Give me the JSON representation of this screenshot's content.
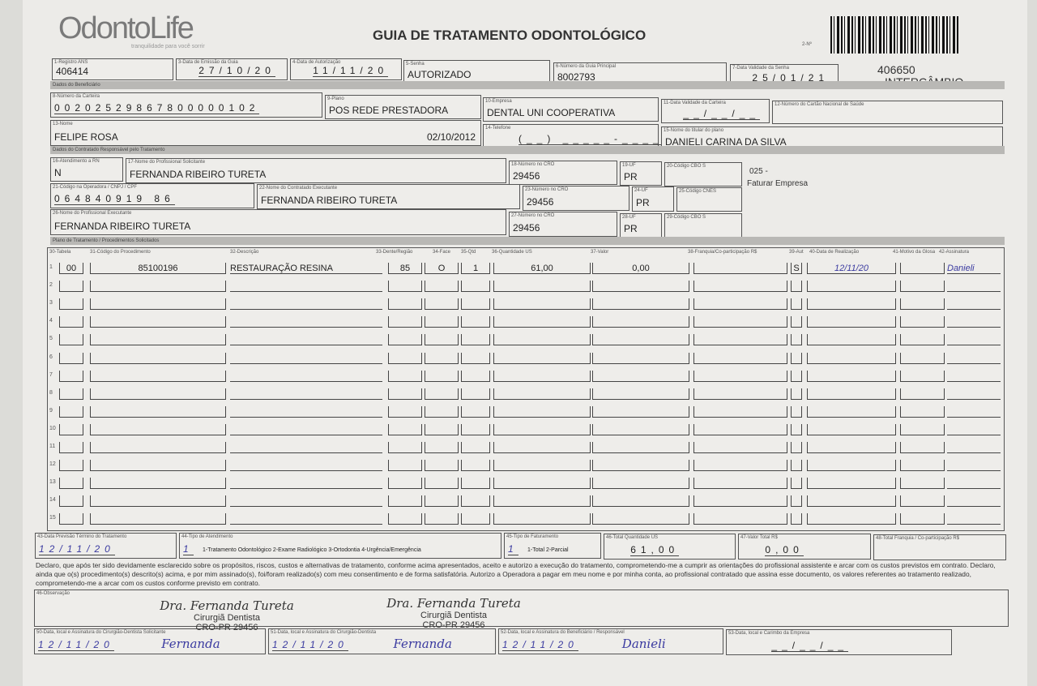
{
  "header": {
    "logo": "OdontoLife",
    "logo_tagline": "tranquilidade para você sorrir",
    "title": "GUIA DE TRATAMENTO ODONTOLÓGICO",
    "guide_no_label": "2-Nº",
    "code": "406650",
    "code_label": "INTERCÂMBIO"
  },
  "sections": {
    "beneficiary": "Dados do Beneficiário",
    "contracted": "Dados do Contratado Responsável pelo Tratamento",
    "plan": "Plano de Tratamento / Procedimentos Solicitados"
  },
  "fields": {
    "f1": {
      "label": "1-Registro ANS",
      "value": "406414"
    },
    "f3": {
      "label": "3-Data de Emissão da Guia",
      "value": "27/10/20"
    },
    "f4": {
      "label": "4-Data de Autorização",
      "value": "11/11/20"
    },
    "f5": {
      "label": "5-Senha",
      "value": "AUTORIZADO"
    },
    "f6": {
      "label": "6-Número da Guia Principal",
      "value": "8002793"
    },
    "f7": {
      "label": "7-Data Validade da Senha",
      "value": "25/01/21"
    },
    "f8": {
      "label": "8-Número da Carteira",
      "value": "00202529867800000102"
    },
    "f9": {
      "label": "9-Plano",
      "value": "POS REDE PRESTADORA"
    },
    "f10": {
      "label": "10-Empresa",
      "value": "DENTAL UNI  COOPERATIVA"
    },
    "f11": {
      "label": "11-Data Validade da Carteira",
      "value": "__/__/__"
    },
    "f12": {
      "label": "12-Número do Cartão Nacional de Saúde",
      "value": ""
    },
    "f13": {
      "label": "13-Nome",
      "value": "FELIPE ROSA",
      "date": "02/10/2012"
    },
    "f14": {
      "label": "14-Telefone",
      "value": "(__) _____-_____"
    },
    "f15": {
      "label": "15-Nome do titular do plano",
      "value": "DANIELI CARINA DA SILVA"
    },
    "f16": {
      "label": "16-Atendimento a RN",
      "value": "N"
    },
    "f17": {
      "label": "17-Nome do Profissional Solicitante",
      "value": "FERNANDA RIBEIRO TURETA"
    },
    "f18": {
      "label": "18-Número no CRO",
      "value": "29456"
    },
    "f19": {
      "label": "19-UF",
      "value": "PR"
    },
    "f20": {
      "label": "20-Código CBO S",
      "value": ""
    },
    "f21": {
      "label": "21-Código na Operadora / CNPJ / CPF",
      "value": "064840919 86"
    },
    "f22": {
      "label": "22-Nome do Contratado Executante",
      "value": "FERNANDA RIBEIRO TURETA"
    },
    "f23": {
      "label": "23-Número no CRO",
      "value": "29456"
    },
    "f24": {
      "label": "24-UF",
      "value": "PR"
    },
    "f25": {
      "label": "25-Código CNES",
      "value": ""
    },
    "f26": {
      "label": "26-Nome do Profissional Executante",
      "value": "FERNANDA RIBEIRO TURETA"
    },
    "f27": {
      "label": "27-Número no CRO",
      "value": "29456"
    },
    "f28": {
      "label": "28-UF",
      "value": "PR"
    },
    "f29": {
      "label": "29-Código CBO S",
      "value": ""
    }
  },
  "side_note": {
    "code": "025 -",
    "text": "Faturar Empresa"
  },
  "table": {
    "headers": [
      "30-Tabela",
      "31-Código do Procedimento",
      "32-Descrição",
      "33-Dente/Região",
      "34-Face",
      "35-Qtd",
      "36-Quantidade US",
      "37-Valor",
      "38-Franquia/Co-participação R$",
      "39-Aut",
      "40-Data de Realização",
      "41-Motivo da Glosa",
      "42-Assinatura"
    ],
    "rows": [
      {
        "n": "1",
        "tabela": "00",
        "codigo": "85100196",
        "descricao": "RESTAURAÇÃO RESINA",
        "dente": "85",
        "face": "O",
        "qtd": "1",
        "qtd_us": "61,00",
        "valor": "0,00",
        "franquia": "",
        "aut": "S",
        "data": "12/11/20",
        "glosa": "",
        "assinatura": "Danieli"
      },
      {
        "n": "2"
      },
      {
        "n": "3"
      },
      {
        "n": "4"
      },
      {
        "n": "5"
      },
      {
        "n": "6"
      },
      {
        "n": "7"
      },
      {
        "n": "8"
      },
      {
        "n": "9"
      },
      {
        "n": "10"
      },
      {
        "n": "11"
      },
      {
        "n": "12"
      },
      {
        "n": "13"
      },
      {
        "n": "14"
      },
      {
        "n": "15"
      }
    ]
  },
  "footer": {
    "f43": {
      "label": "43-Data Previsão Término do Tratamento",
      "value": "12/11/20"
    },
    "f44": {
      "label": "44-Tipo de Atendimento",
      "value": "1",
      "options": "1-Tratamento Odontológico  2-Exame Radiológico  3-Ortodontia  4-Urgência/Emergência"
    },
    "f45": {
      "label": "45-Tipo de Faturamento",
      "value": "1",
      "options": "1-Total  2-Parcial"
    },
    "f46": {
      "label": "46-Total Quantidade US",
      "value": "61,00"
    },
    "f47": {
      "label": "47-Valor Total R$",
      "value": "0,00"
    },
    "f48": {
      "label": "48-Total Franquia / Co-participação R$",
      "value": ""
    },
    "declaration": "Declaro, que após ter sido devidamente esclarecido sobre os propósitos, riscos, custos e alternativas de tratamento, conforme acima apresentados, aceito e autorizo a execução do tratamento, comprometendo-me a cumprir as orientações do profissional assistente e arcar com os custos previstos em contrato. Declaro, ainda que o(s) procedimento(s) descrito(s) acima, e por mim assinado(s), foi/foram realizado(s) com meu consentimento e de forma satisfatória. Autorizo a Operadora a pagar em meu nome e por minha conta, ao profissional contratado que assina esse documento, os valores referentes ao tratamento realizado, comprometendo-me a arcar com os custos conforme previsto em contrato.",
    "f46obs": {
      "label": "46-Observação"
    },
    "stamp": {
      "name": "Dra. Fernanda Tureta",
      "role": "Cirurgiã Dentista",
      "cro": "CRO-PR 29456"
    },
    "f50": {
      "label": "50-Data, local e Assinatura do Cirurgião-Dentista Solicitante",
      "value": "12/11/20",
      "sign": "Fernanda"
    },
    "f51": {
      "label": "51-Data, local e Assinatura do Cirurgião-Dentista",
      "value": "12/11/20",
      "sign": "Fernanda"
    },
    "f52": {
      "label": "52-Data, local e Assinatura do Beneficiário / Responsável",
      "value": "12/11/20",
      "sign": "Danieli"
    },
    "f53": {
      "label": "53-Data, local e Carimbo da Empresa",
      "value": "__/__/__"
    }
  }
}
